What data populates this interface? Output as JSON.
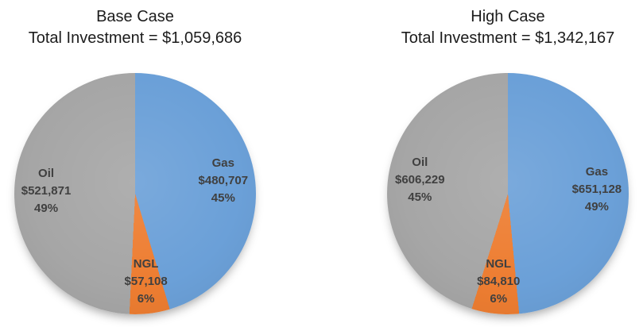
{
  "page": {
    "background_color": "#ffffff",
    "label_text_color": "#404040",
    "title_text_color": "#1c1c1c"
  },
  "chart_data": [
    {
      "type": "pie",
      "title": "Base Case",
      "subtitle": "Total Investment = $1,059,686",
      "total_value": 1059686,
      "total_text": "$1,059,686",
      "start_angle_deg": 0,
      "direction": "clockwise",
      "legend": "none",
      "slices": [
        {
          "label": "Gas",
          "value": 480707,
          "value_text": "$480,707",
          "pct": 45,
          "pct_text": "45%",
          "color": "#6BA0D8"
        },
        {
          "label": "NGL",
          "value": 57108,
          "value_text": "$57,108",
          "pct": 6,
          "pct_text": "6%",
          "color": "#ED7D31"
        },
        {
          "label": "Oil",
          "value": 521871,
          "value_text": "$521,871",
          "pct": 49,
          "pct_text": "49%",
          "color": "#A6A6A6"
        }
      ]
    },
    {
      "type": "pie",
      "title": "High Case",
      "subtitle": "Total Investment = $1,342,167",
      "total_value": 1342167,
      "total_text": "$1,342,167",
      "start_angle_deg": 0,
      "direction": "clockwise",
      "legend": "none",
      "slices": [
        {
          "label": "Gas",
          "value": 651128,
          "value_text": "$651,128",
          "pct": 49,
          "pct_text": "49%",
          "color": "#6BA0D8"
        },
        {
          "label": "NGL",
          "value": 84810,
          "value_text": "$84,810",
          "pct": 6,
          "pct_text": "6%",
          "color": "#ED7D31"
        },
        {
          "label": "Oil",
          "value": 606229,
          "value_text": "$606,229",
          "pct": 45,
          "pct_text": "45%",
          "color": "#A6A6A6"
        }
      ]
    }
  ]
}
